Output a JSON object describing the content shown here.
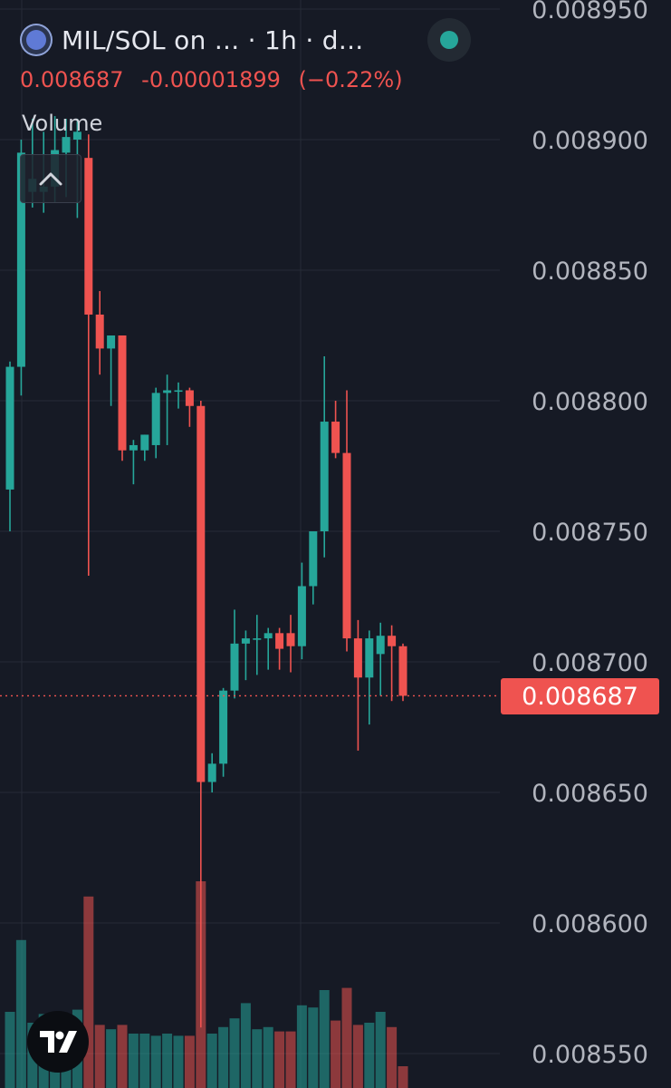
{
  "header": {
    "title": "MIL/SOL on ... · 1h · d...",
    "price": "0.008687",
    "change": "-0.00001899",
    "change_pct": "(−0.22%)",
    "volume_label": "Volume",
    "status_color": "#26a69a"
  },
  "icons": {
    "symbol": "coin-logo-icon",
    "collapse": "chevron-up-icon",
    "brand": "tradingview-logo-icon"
  },
  "colors": {
    "up": "#26a69a",
    "down": "#ef5350",
    "background": "#161a25",
    "grid": "#262b36",
    "axis_text": "#b2b5be"
  },
  "last_price_label": "0.008687",
  "chart_data": {
    "type": "candlestick",
    "interval": "1h",
    "ylim": [
      0.00854,
      0.00895
    ],
    "yticks": [
      "0.008950",
      "0.008900",
      "0.008850",
      "0.008800",
      "0.008750",
      "0.008700",
      "0.008650",
      "0.008600",
      "0.008550"
    ],
    "ytick_values": [
      0.00895,
      0.0089,
      0.00885,
      0.0088,
      0.00875,
      0.0087,
      0.00865,
      0.0086,
      0.00855
    ],
    "last_price": 0.008687,
    "candles": [
      {
        "o": 0.008766,
        "h": 0.008815,
        "l": 0.00875,
        "c": 0.008813,
        "v": 0.35
      },
      {
        "o": 0.008813,
        "h": 0.0089,
        "l": 0.008802,
        "c": 0.008895,
        "v": 0.68
      },
      {
        "o": 0.00888,
        "h": 0.008908,
        "l": 0.008874,
        "c": 0.008885,
        "v": 0.3
      },
      {
        "o": 0.00888,
        "h": 0.008903,
        "l": 0.008872,
        "c": 0.008882,
        "v": 0.34
      },
      {
        "o": 0.008882,
        "h": 0.008909,
        "l": 0.008876,
        "c": 0.008896,
        "v": 0.32
      },
      {
        "o": 0.008895,
        "h": 0.008908,
        "l": 0.008878,
        "c": 0.008901,
        "v": 0.33
      },
      {
        "o": 0.0089,
        "h": 0.008908,
        "l": 0.00887,
        "c": 0.008903,
        "v": 0.36
      },
      {
        "o": 0.008893,
        "h": 0.008902,
        "l": 0.008733,
        "c": 0.008833,
        "v": 0.88
      },
      {
        "o": 0.008833,
        "h": 0.008842,
        "l": 0.00881,
        "c": 0.00882,
        "v": 0.29
      },
      {
        "o": 0.00882,
        "h": 0.008825,
        "l": 0.008798,
        "c": 0.008825,
        "v": 0.27
      },
      {
        "o": 0.008825,
        "h": 0.008825,
        "l": 0.008777,
        "c": 0.008781,
        "v": 0.29
      },
      {
        "o": 0.008781,
        "h": 0.008785,
        "l": 0.008768,
        "c": 0.008783,
        "v": 0.25
      },
      {
        "o": 0.008781,
        "h": 0.008787,
        "l": 0.008777,
        "c": 0.008787,
        "v": 0.25
      },
      {
        "o": 0.008783,
        "h": 0.008805,
        "l": 0.008778,
        "c": 0.008803,
        "v": 0.24
      },
      {
        "o": 0.008803,
        "h": 0.00881,
        "l": 0.008783,
        "c": 0.008804,
        "v": 0.25
      },
      {
        "o": 0.008804,
        "h": 0.008807,
        "l": 0.008797,
        "c": 0.008804,
        "v": 0.24
      },
      {
        "o": 0.008804,
        "h": 0.008805,
        "l": 0.00879,
        "c": 0.008798,
        "v": 0.24
      },
      {
        "o": 0.008798,
        "h": 0.0088,
        "l": 0.00856,
        "c": 0.008654,
        "v": 0.95
      },
      {
        "o": 0.008654,
        "h": 0.008665,
        "l": 0.00865,
        "c": 0.008661,
        "v": 0.25
      },
      {
        "o": 0.008661,
        "h": 0.00869,
        "l": 0.008656,
        "c": 0.008689,
        "v": 0.28
      },
      {
        "o": 0.008689,
        "h": 0.00872,
        "l": 0.008686,
        "c": 0.008707,
        "v": 0.32
      },
      {
        "o": 0.008707,
        "h": 0.008712,
        "l": 0.008693,
        "c": 0.008709,
        "v": 0.39
      },
      {
        "o": 0.008709,
        "h": 0.008718,
        "l": 0.008695,
        "c": 0.008709,
        "v": 0.27
      },
      {
        "o": 0.008709,
        "h": 0.008713,
        "l": 0.008697,
        "c": 0.008711,
        "v": 0.28
      },
      {
        "o": 0.008711,
        "h": 0.008713,
        "l": 0.008697,
        "c": 0.008705,
        "v": 0.26
      },
      {
        "o": 0.008711,
        "h": 0.008718,
        "l": 0.008696,
        "c": 0.008706,
        "v": 0.26
      },
      {
        "o": 0.008706,
        "h": 0.008738,
        "l": 0.008701,
        "c": 0.008729,
        "v": 0.38
      },
      {
        "o": 0.008729,
        "h": 0.00875,
        "l": 0.008722,
        "c": 0.00875,
        "v": 0.37
      },
      {
        "o": 0.00875,
        "h": 0.008817,
        "l": 0.00874,
        "c": 0.008792,
        "v": 0.45
      },
      {
        "o": 0.008792,
        "h": 0.0088,
        "l": 0.008778,
        "c": 0.00878,
        "v": 0.31
      },
      {
        "o": 0.00878,
        "h": 0.008804,
        "l": 0.008704,
        "c": 0.008709,
        "v": 0.46
      },
      {
        "o": 0.008709,
        "h": 0.008716,
        "l": 0.008666,
        "c": 0.008694,
        "v": 0.29
      },
      {
        "o": 0.008694,
        "h": 0.008712,
        "l": 0.008676,
        "c": 0.008709,
        "v": 0.3
      },
      {
        "o": 0.008703,
        "h": 0.008715,
        "l": 0.008687,
        "c": 0.00871,
        "v": 0.35
      },
      {
        "o": 0.00871,
        "h": 0.008714,
        "l": 0.008685,
        "c": 0.008706,
        "v": 0.28
      },
      {
        "o": 0.008706,
        "h": 0.008707,
        "l": 0.008685,
        "c": 0.008687,
        "v": 0.1
      }
    ]
  }
}
